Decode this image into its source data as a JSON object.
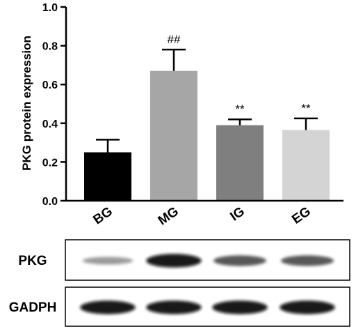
{
  "chart_data": {
    "type": "bar",
    "title": "",
    "xlabel": "",
    "ylabel": "PKG protein expression",
    "ylim": [
      0,
      1.0
    ],
    "yticks": [
      0.0,
      0.2,
      0.4,
      0.6,
      0.8,
      1.0
    ],
    "ytick_labels": [
      "0.0",
      "0.2",
      "0.4",
      "0.6",
      "0.8",
      "1.0"
    ],
    "grid": false,
    "legend": "none",
    "categories": [
      "BG",
      "MG",
      "IG",
      "EG"
    ],
    "values": [
      0.25,
      0.67,
      0.39,
      0.365
    ],
    "errors": [
      0.065,
      0.11,
      0.03,
      0.06
    ],
    "annotations": [
      "",
      "##",
      "**",
      "**"
    ],
    "bar_colors": [
      "#000000",
      "#a6a6a6",
      "#7f7f7f",
      "#d4d4d4"
    ]
  },
  "blot": {
    "rows": [
      {
        "label": "PKG",
        "intensities": [
          0.25,
          0.95,
          0.6,
          0.6
        ]
      },
      {
        "label": "GADPH",
        "intensities": [
          0.95,
          0.95,
          0.95,
          0.95
        ]
      }
    ]
  }
}
